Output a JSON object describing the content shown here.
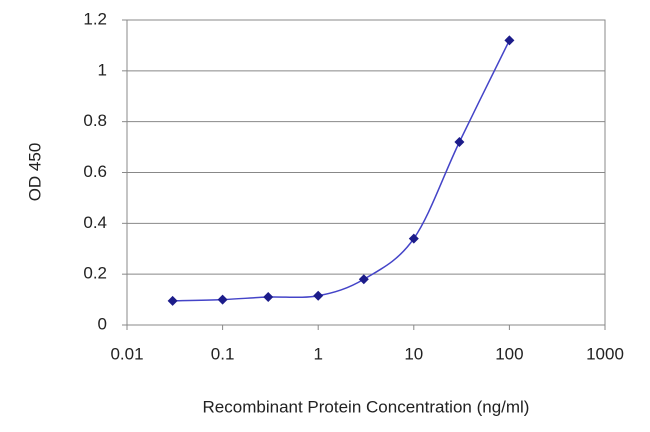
{
  "chart_data": {
    "type": "line",
    "xlabel": "Recombinant Protein Concentration (ng/ml)",
    "ylabel": "OD 450",
    "x": [
      0.03,
      0.1,
      0.3,
      1,
      3,
      10,
      30,
      100
    ],
    "series": [
      {
        "color": "#1c1c8a",
        "values": [
          0.095,
          0.1,
          0.11,
          0.115,
          0.18,
          0.34,
          0.72,
          1.12
        ]
      }
    ],
    "xscale": "log",
    "xlim": [
      0.01,
      1000
    ],
    "xticks": [
      0.01,
      0.1,
      1,
      10,
      100,
      1000
    ],
    "ylim": [
      0,
      1.2
    ],
    "yticks": [
      0,
      0.2,
      0.4,
      0.6,
      0.8,
      1,
      1.2
    ],
    "grid": true
  }
}
